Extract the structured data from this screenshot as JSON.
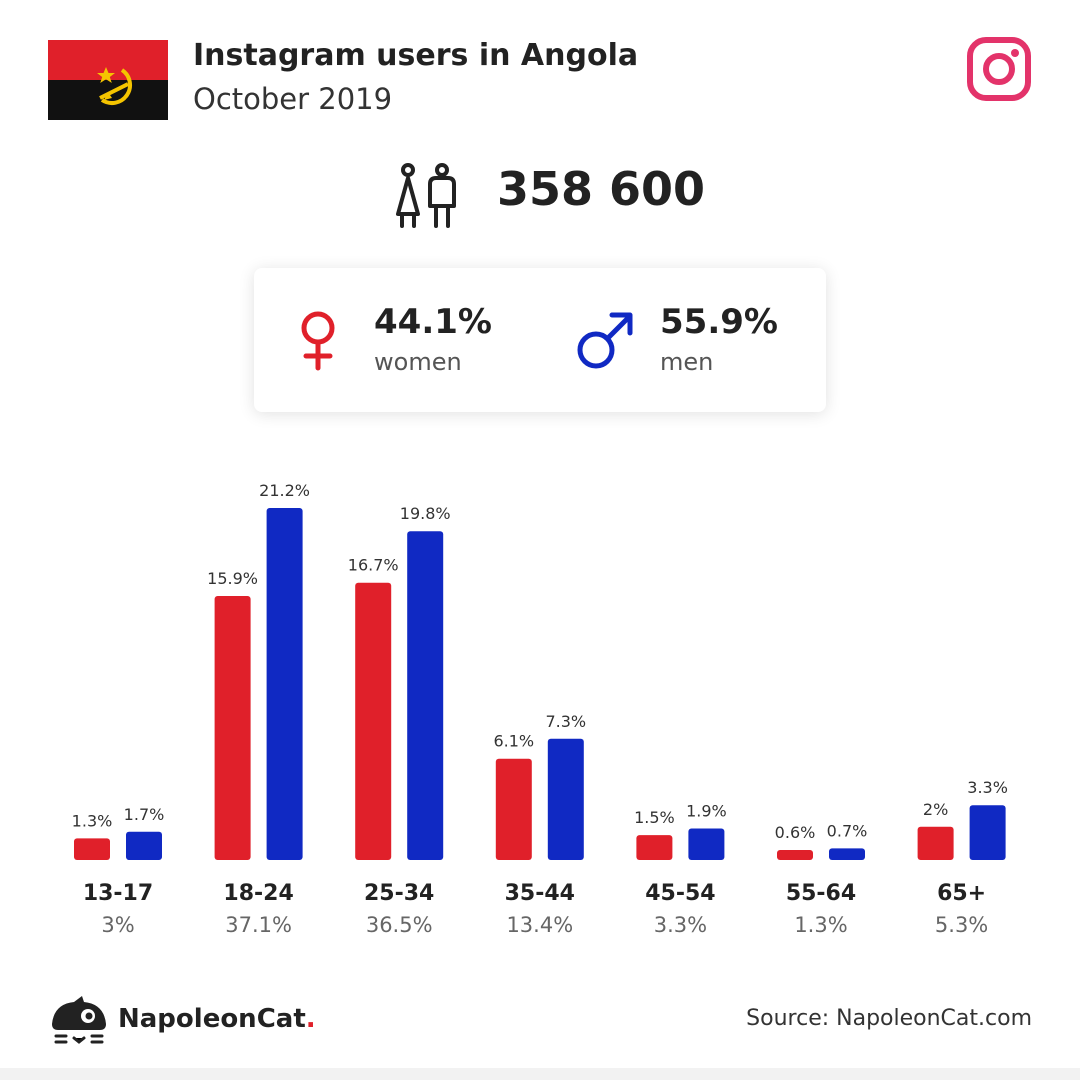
{
  "header": {
    "title": "Instagram users in Angola",
    "subtitle": "October 2019"
  },
  "flag": {
    "icon": "angola-flag-icon",
    "colors": {
      "top": "#e0202a",
      "bottom": "#111111",
      "emblem": "#f5c400"
    }
  },
  "platform": {
    "icon": "instagram-icon",
    "color": "#e3336a"
  },
  "total": {
    "value": "358 600",
    "icon": "users-icon"
  },
  "gender": {
    "women": {
      "pct": "44.1%",
      "label": "women",
      "icon": "female-symbol-icon",
      "color": "#e0202a"
    },
    "men": {
      "pct": "55.9%",
      "label": "men",
      "icon": "male-symbol-icon",
      "color": "#1029c3"
    }
  },
  "chart_data": {
    "type": "bar",
    "categories": [
      "13-17",
      "18-24",
      "25-34",
      "35-44",
      "45-54",
      "55-64",
      "65+"
    ],
    "category_totals": [
      "3%",
      "37.1%",
      "36.5%",
      "13.4%",
      "3.3%",
      "1.3%",
      "5.3%"
    ],
    "series": [
      {
        "name": "women",
        "color": "#e0202a",
        "values": [
          1.3,
          15.9,
          16.7,
          6.1,
          1.5,
          0.6,
          2
        ],
        "labels": [
          "1.3%",
          "15.9%",
          "16.7%",
          "6.1%",
          "1.5%",
          "0.6%",
          "2%"
        ]
      },
      {
        "name": "men",
        "color": "#1029c3",
        "values": [
          1.7,
          21.2,
          19.8,
          7.3,
          1.9,
          0.7,
          3.3
        ],
        "labels": [
          "1.7%",
          "21.2%",
          "19.8%",
          "7.3%",
          "1.9%",
          "0.7%",
          "3.3%"
        ]
      }
    ],
    "ylim": [
      0,
      21.2
    ],
    "grid": false,
    "legend": "none"
  },
  "footer": {
    "brand": "NapoleonCat",
    "brand_dot": ".",
    "logo_icon": "napoleoncat-logo-icon",
    "source": "Source: NapoleonCat.com"
  }
}
